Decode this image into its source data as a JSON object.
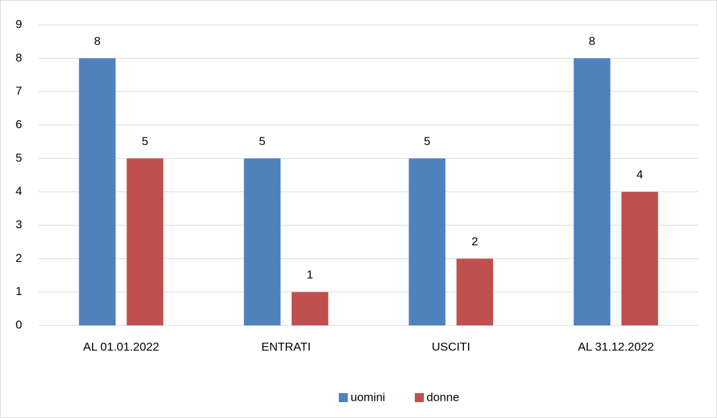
{
  "chart_data": {
    "type": "bar",
    "categories": [
      "AL 01.01.2022",
      "ENTRATI",
      "USCITI",
      "AL 31.12.2022"
    ],
    "series": [
      {
        "name": "uomini",
        "color": "#4f81bd",
        "values": [
          8,
          5,
          5,
          8
        ]
      },
      {
        "name": "donne",
        "color": "#c0504d",
        "values": [
          5,
          1,
          2,
          4
        ]
      }
    ],
    "ylim": [
      0,
      9
    ],
    "yticks": [
      0,
      1,
      2,
      3,
      4,
      5,
      6,
      7,
      8,
      9
    ],
    "grid": true,
    "legend": "bottom"
  }
}
